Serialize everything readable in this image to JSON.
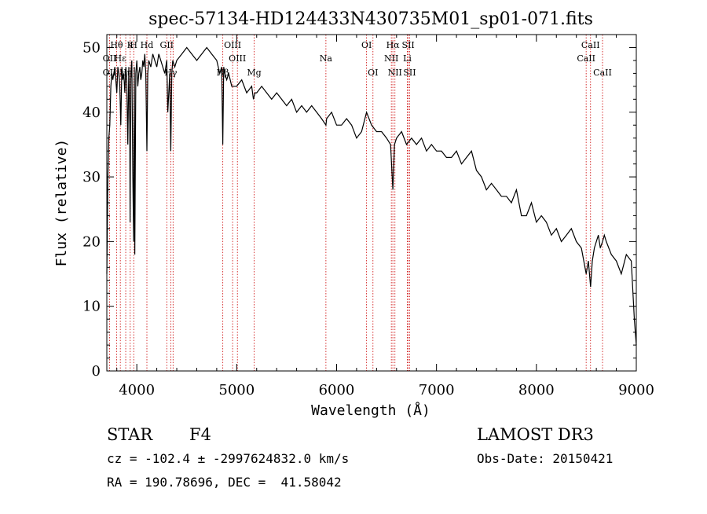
{
  "chart_data": {
    "type": "line",
    "title": "spec-57134-HD124433N430735M01_sp01-071.fits",
    "xlabel": "Wavelength (Å)",
    "ylabel": "Flux (relative)",
    "xlim": [
      3700,
      9000
    ],
    "ylim": [
      0,
      52
    ],
    "x_ticks": [
      4000,
      5000,
      6000,
      7000,
      8000,
      9000
    ],
    "y_ticks": [
      0,
      10,
      20,
      30,
      40,
      50
    ],
    "grid": false,
    "legend": "none",
    "colors": {
      "spectrum": "#000000",
      "marker_lines": "#cc0000"
    },
    "series": [
      {
        "x": [
          3700,
          3710,
          3720,
          3730,
          3740,
          3750,
          3760,
          3770,
          3780,
          3790,
          3800,
          3810,
          3820,
          3830,
          3840,
          3850,
          3860,
          3870,
          3880,
          3890,
          3900,
          3910,
          3920,
          3930,
          3933,
          3940,
          3950,
          3960,
          3968,
          3975,
          3980,
          3990,
          4000,
          4010,
          4020,
          4030,
          4040,
          4050,
          4060,
          4070,
          4080,
          4090,
          4101,
          4110,
          4120,
          4140,
          4160,
          4180,
          4200,
          4220,
          4240,
          4260,
          4280,
          4300,
          4310,
          4330,
          4340,
          4350,
          4360,
          4380,
          4400,
          4450,
          4500,
          4550,
          4600,
          4650,
          4700,
          4750,
          4800,
          4830,
          4850,
          4861,
          4870,
          4880,
          4900,
          4920,
          4950,
          5000,
          5050,
          5100,
          5150,
          5167,
          5183,
          5200,
          5250,
          5300,
          5350,
          5400,
          5450,
          5500,
          5550,
          5600,
          5650,
          5700,
          5750,
          5800,
          5850,
          5893,
          5900,
          5950,
          6000,
          6050,
          6100,
          6150,
          6200,
          6250,
          6300,
          6350,
          6400,
          6450,
          6500,
          6540,
          6563,
          6580,
          6600,
          6650,
          6700,
          6750,
          6800,
          6850,
          6900,
          6950,
          7000,
          7050,
          7100,
          7150,
          7200,
          7250,
          7300,
          7350,
          7400,
          7450,
          7500,
          7550,
          7600,
          7650,
          7700,
          7750,
          7800,
          7850,
          7900,
          7950,
          8000,
          8050,
          8100,
          8150,
          8200,
          8250,
          8300,
          8350,
          8400,
          8450,
          8498,
          8520,
          8542,
          8560,
          8580,
          8600,
          8620,
          8640,
          8662,
          8680,
          8700,
          8750,
          8800,
          8850,
          8900,
          8950,
          8980,
          9000
        ],
        "y": [
          15,
          30,
          36,
          38,
          44,
          46,
          45,
          46,
          47,
          45,
          43,
          47,
          46,
          44,
          38,
          47,
          45,
          46,
          43,
          47,
          45,
          35,
          47,
          38,
          23,
          46,
          48,
          30,
          20,
          47,
          18,
          46,
          48,
          44,
          46,
          47,
          45,
          46,
          48,
          47,
          49,
          46,
          34,
          46,
          48,
          47,
          49,
          48,
          47,
          49,
          48,
          47,
          46,
          48,
          40,
          46,
          34,
          46,
          48,
          47,
          48,
          49,
          50,
          49,
          48,
          49,
          50,
          49,
          48,
          46,
          47,
          35,
          47,
          46,
          45,
          46,
          44,
          44,
          45,
          43,
          44,
          42,
          43,
          43,
          44,
          43,
          42,
          43,
          42,
          41,
          42,
          40,
          41,
          40,
          41,
          40,
          39,
          38,
          39,
          40,
          38,
          38,
          39,
          38,
          36,
          37,
          40,
          38,
          37,
          37,
          36,
          35,
          28,
          35,
          36,
          37,
          35,
          36,
          35,
          36,
          34,
          35,
          34,
          34,
          33,
          33,
          34,
          32,
          33,
          34,
          31,
          30,
          28,
          29,
          28,
          27,
          27,
          26,
          28,
          24,
          24,
          26,
          23,
          24,
          23,
          21,
          22,
          20,
          21,
          22,
          20,
          19,
          15,
          17,
          13,
          17,
          19,
          20,
          21,
          19,
          20,
          21,
          20,
          18,
          17,
          15,
          18,
          17,
          8,
          4
        ]
      }
    ],
    "annotations": [
      {
        "label": "Hθ",
        "x": 3798,
        "row": 1
      },
      {
        "label": "K",
        "x": 3934,
        "row": 1
      },
      {
        "label": "H",
        "x": 3969,
        "row": 1
      },
      {
        "label": "Hd",
        "x": 4101,
        "row": 1
      },
      {
        "label": "OII",
        "x": 3727,
        "row": 2
      },
      {
        "label": "Hε",
        "x": 3835,
        "row": 2
      },
      {
        "label": "OII",
        "x": 3727,
        "row": 3
      },
      {
        "label": "Hη",
        "x": 3889,
        "row": 3
      },
      {
        "label": "GII",
        "x": 4300,
        "row": 1
      },
      {
        "label": "Hγ",
        "x": 4340,
        "row": 3
      },
      {
        "label": "OIII",
        "x": 4959,
        "row": 1
      },
      {
        "label": "OIII",
        "x": 5007,
        "row": 2
      },
      {
        "label": "Hβ",
        "x": 4861,
        "row": 3
      },
      {
        "label": "Mg",
        "x": 5175,
        "row": 3
      },
      {
        "label": "Na",
        "x": 5893,
        "row": 2
      },
      {
        "label": "OI",
        "x": 6300,
        "row": 1
      },
      {
        "label": "OI",
        "x": 6364,
        "row": 3
      },
      {
        "label": "Hα",
        "x": 6563,
        "row": 1
      },
      {
        "label": "NII",
        "x": 6548,
        "row": 2
      },
      {
        "label": "NII",
        "x": 6584,
        "row": 3
      },
      {
        "label": "SII",
        "x": 6717,
        "row": 1
      },
      {
        "label": "Li",
        "x": 6708,
        "row": 2
      },
      {
        "label": "SII",
        "x": 6731,
        "row": 3
      },
      {
        "label": "CaII",
        "x": 8542,
        "row": 1
      },
      {
        "label": "CaII",
        "x": 8498,
        "row": 2
      },
      {
        "label": "CaII",
        "x": 8662,
        "row": 3
      }
    ],
    "marker_lines": [
      3727,
      3798,
      3835,
      3889,
      3934,
      3969,
      4101,
      4300,
      4340,
      4363,
      4861,
      4959,
      5007,
      5175,
      5893,
      6300,
      6364,
      6548,
      6563,
      6584,
      6708,
      6717,
      6731,
      8498,
      8542,
      8662
    ]
  },
  "footer": {
    "class": "STAR",
    "subclass": "F4",
    "survey": "LAMOST DR3",
    "cz_line": "cz = -102.4 ± -2997624832.0 km/s",
    "obs_date": "Obs-Date: 20150421",
    "radec": "RA = 190.78696, DEC =  41.58042"
  }
}
